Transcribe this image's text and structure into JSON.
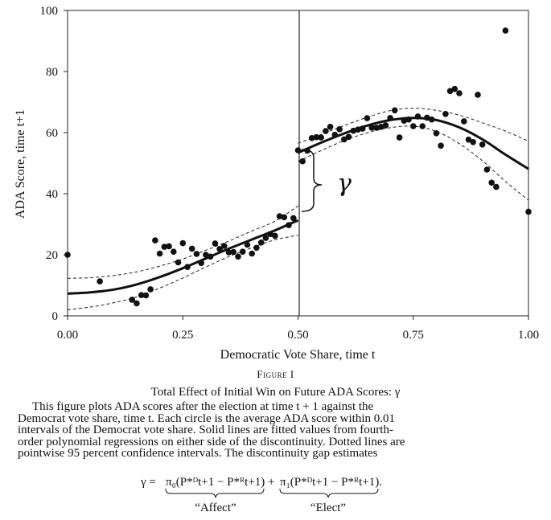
{
  "chart_data": {
    "type": "scatter",
    "xlabel": "Democratic Vote Share, time t",
    "ylabel": "ADA Score, time t+1",
    "xlim": [
      0,
      1
    ],
    "ylim": [
      0,
      100
    ],
    "x_ticks": [
      "0.00",
      "0.25",
      "0.50",
      "0.75",
      "1.00"
    ],
    "y_ticks": [
      "0",
      "20",
      "40",
      "60",
      "80",
      "100"
    ],
    "threshold": 0.5,
    "gap_label": "γ",
    "grid": false,
    "points": [
      [
        0.0,
        20.0
      ],
      [
        0.07,
        11.3
      ],
      [
        0.14,
        5.3
      ],
      [
        0.15,
        4.1
      ],
      [
        0.16,
        6.8
      ],
      [
        0.17,
        6.7
      ],
      [
        0.18,
        8.7
      ],
      [
        0.19,
        24.7
      ],
      [
        0.2,
        20.4
      ],
      [
        0.21,
        22.6
      ],
      [
        0.22,
        22.8
      ],
      [
        0.23,
        21.0
      ],
      [
        0.24,
        17.5
      ],
      [
        0.25,
        23.8
      ],
      [
        0.26,
        16.0
      ],
      [
        0.27,
        22.0
      ],
      [
        0.28,
        20.3
      ],
      [
        0.29,
        17.3
      ],
      [
        0.3,
        20.0
      ],
      [
        0.31,
        19.4
      ],
      [
        0.32,
        23.7
      ],
      [
        0.33,
        21.9
      ],
      [
        0.34,
        22.9
      ],
      [
        0.35,
        20.8
      ],
      [
        0.36,
        20.9
      ],
      [
        0.37,
        19.4
      ],
      [
        0.38,
        21.0
      ],
      [
        0.39,
        23.3
      ],
      [
        0.4,
        20.4
      ],
      [
        0.41,
        22.3
      ],
      [
        0.42,
        24.0
      ],
      [
        0.43,
        25.5
      ],
      [
        0.44,
        26.8
      ],
      [
        0.45,
        26.2
      ],
      [
        0.46,
        32.6
      ],
      [
        0.47,
        32.3
      ],
      [
        0.48,
        29.7
      ],
      [
        0.49,
        32.0
      ],
      [
        0.5,
        54.2
      ],
      [
        0.51,
        50.6
      ],
      [
        0.52,
        54.1
      ],
      [
        0.53,
        58.2
      ],
      [
        0.54,
        58.5
      ],
      [
        0.55,
        58.4
      ],
      [
        0.56,
        60.5
      ],
      [
        0.57,
        61.9
      ],
      [
        0.58,
        59.3
      ],
      [
        0.59,
        61.1
      ],
      [
        0.6,
        57.8
      ],
      [
        0.61,
        58.6
      ],
      [
        0.62,
        60.6
      ],
      [
        0.63,
        61.0
      ],
      [
        0.64,
        61.3
      ],
      [
        0.65,
        64.7
      ],
      [
        0.66,
        61.6
      ],
      [
        0.67,
        61.6
      ],
      [
        0.68,
        61.9
      ],
      [
        0.69,
        62.4
      ],
      [
        0.7,
        64.8
      ],
      [
        0.71,
        67.3
      ],
      [
        0.72,
        58.4
      ],
      [
        0.73,
        63.9
      ],
      [
        0.74,
        64.3
      ],
      [
        0.75,
        62.1
      ],
      [
        0.76,
        65.3
      ],
      [
        0.77,
        62.1
      ],
      [
        0.78,
        64.9
      ],
      [
        0.79,
        64.3
      ],
      [
        0.8,
        59.8
      ],
      [
        0.81,
        55.7
      ],
      [
        0.82,
        66.1
      ],
      [
        0.83,
        73.6
      ],
      [
        0.84,
        74.3
      ],
      [
        0.85,
        72.9
      ],
      [
        0.86,
        63.7
      ],
      [
        0.87,
        57.7
      ],
      [
        0.88,
        56.9
      ],
      [
        0.89,
        72.4
      ],
      [
        0.9,
        56.1
      ],
      [
        0.91,
        47.9
      ],
      [
        0.92,
        43.6
      ],
      [
        0.93,
        42.2
      ],
      [
        0.95,
        93.4
      ],
      [
        1.0,
        34.1
      ]
    ],
    "fit_left": [
      [
        0.0,
        7.3
      ],
      [
        0.05,
        7.7
      ],
      [
        0.1,
        8.6
      ],
      [
        0.15,
        10.3
      ],
      [
        0.2,
        12.7
      ],
      [
        0.25,
        15.6
      ],
      [
        0.3,
        18.8
      ],
      [
        0.35,
        22.0
      ],
      [
        0.4,
        25.0
      ],
      [
        0.45,
        28.0
      ],
      [
        0.5,
        31.3
      ]
    ],
    "upper_left": [
      [
        0.0,
        12.3
      ],
      [
        0.05,
        12.5
      ],
      [
        0.1,
        13.2
      ],
      [
        0.15,
        14.4
      ],
      [
        0.2,
        16.3
      ],
      [
        0.25,
        18.6
      ],
      [
        0.3,
        21.5
      ],
      [
        0.35,
        24.5
      ],
      [
        0.4,
        27.8
      ],
      [
        0.45,
        31.0
      ],
      [
        0.5,
        36.0
      ]
    ],
    "lower_left": [
      [
        0.0,
        2.0
      ],
      [
        0.05,
        2.9
      ],
      [
        0.1,
        4.3
      ],
      [
        0.15,
        6.2
      ],
      [
        0.2,
        9.1
      ],
      [
        0.25,
        12.4
      ],
      [
        0.3,
        16.0
      ],
      [
        0.35,
        19.4
      ],
      [
        0.4,
        22.3
      ],
      [
        0.45,
        24.9
      ],
      [
        0.5,
        26.4
      ]
    ],
    "fit_right": [
      [
        0.5,
        53.4
      ],
      [
        0.55,
        56.7
      ],
      [
        0.6,
        59.7
      ],
      [
        0.65,
        62.3
      ],
      [
        0.7,
        64.1
      ],
      [
        0.75,
        64.8
      ],
      [
        0.8,
        64.1
      ],
      [
        0.85,
        61.7
      ],
      [
        0.9,
        57.8
      ],
      [
        0.95,
        52.8
      ],
      [
        1.0,
        48.1
      ]
    ],
    "upper_right": [
      [
        0.5,
        56.5
      ],
      [
        0.55,
        59.4
      ],
      [
        0.6,
        62.3
      ],
      [
        0.65,
        65.0
      ],
      [
        0.7,
        67.2
      ],
      [
        0.75,
        68.0
      ],
      [
        0.8,
        67.3
      ],
      [
        0.85,
        65.7
      ],
      [
        0.9,
        63.2
      ],
      [
        0.95,
        60.5
      ],
      [
        1.0,
        57.2
      ]
    ],
    "lower_right": [
      [
        0.5,
        50.6
      ],
      [
        0.55,
        54.1
      ],
      [
        0.6,
        57.4
      ],
      [
        0.65,
        59.9
      ],
      [
        0.7,
        61.6
      ],
      [
        0.75,
        62.1
      ],
      [
        0.8,
        60.4
      ],
      [
        0.85,
        56.4
      ],
      [
        0.9,
        50.8
      ],
      [
        0.95,
        44.0
      ],
      [
        1.0,
        37.9
      ]
    ]
  },
  "caption": {
    "figure_label": "Figure I",
    "title": "Total Effect of Initial Win on Future ADA Scores: γ",
    "body_lines": [
      "This figure plots ADA scores after the election at time t + 1 against the",
      "Democrat vote share, time t. Each circle is the average ADA score within 0.01",
      "intervals of the Democrat vote share. Solid lines are fitted values from fourth-",
      "order polynomial regressions on either side of the discontinuity. Dotted lines are",
      "pointwise 95 percent confidence intervals. The discontinuity gap estimates"
    ],
    "equation": {
      "lhs": "γ =",
      "term1": "π₀(P*ᴰt+1 − P*ᴿt+1)",
      "plus": "+",
      "term2": "π₁(P*ᴰt+1 − P*ᴿt+1).",
      "label1": "“Affect”",
      "label2": "“Elect”"
    }
  }
}
